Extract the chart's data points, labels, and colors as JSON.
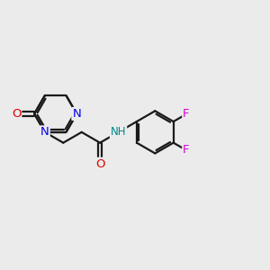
{
  "background_color": "#ebebeb",
  "bond_color": "#1a1a1a",
  "N_color": "#0000ee",
  "O_color": "#dd0000",
  "F_color": "#dd00dd",
  "NH_color": "#008888",
  "figsize": [
    3.0,
    3.0
  ],
  "dpi": 100,
  "BL": 1.0,
  "lw": 1.6,
  "fs": 9.5,
  "xlim": [
    -1.0,
    11.5
  ],
  "ylim": [
    -0.5,
    10.5
  ]
}
